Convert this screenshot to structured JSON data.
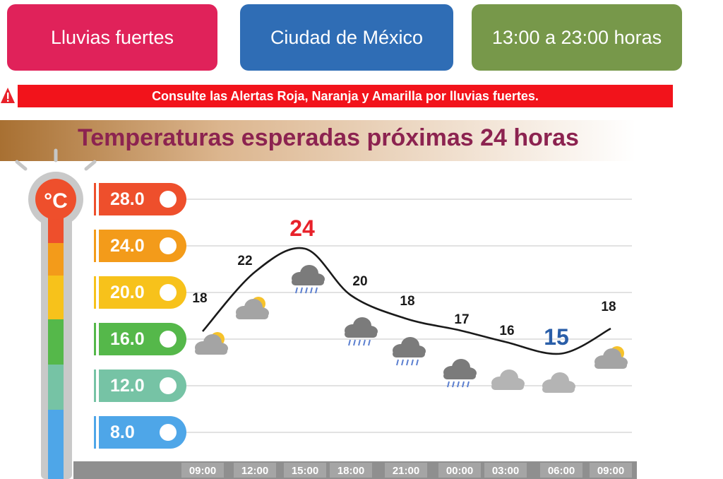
{
  "header": {
    "alert_label": "Lluvias fuertes",
    "city_label": "Ciudad de México",
    "time_label": "13:00 a 23:00 horas",
    "alert_color": "#e0225a",
    "city_color": "#2f6db5",
    "time_color": "#77984a"
  },
  "banner": {
    "text": "Consulte las Alertas Roja, Naranja y Amarilla por lluvias fuertes.",
    "color": "#f2131b"
  },
  "title": {
    "text": "Temperaturas esperadas próximas 24 horas",
    "color": "#8c2350"
  },
  "thermometer": {
    "unit": "°C"
  },
  "chart_data": {
    "type": "line",
    "title": "Temperaturas esperadas próximas 24 horas",
    "x": [
      "09:00",
      "12:00",
      "15:00",
      "18:00",
      "21:00",
      "00:00",
      "03:00",
      "06:00",
      "09:00"
    ],
    "values": [
      18,
      22,
      24,
      20,
      18,
      17,
      16,
      15,
      18
    ],
    "y_ticks": [
      "28.0",
      "24.0",
      "20.0",
      "16.0",
      "12.0",
      "8.0"
    ],
    "ylim": [
      8,
      28
    ],
    "grid": true,
    "tick_colors": [
      "#ee4f2c",
      "#f39b1a",
      "#f7c21b",
      "#55b84a",
      "#76c3a5",
      "#4ea6e8"
    ],
    "max_color": "#e8212a",
    "min_color": "#2a5ea8",
    "weather_icons": [
      "partly-cloudy-icon",
      "partly-cloudy-icon",
      "rain-cloud-icon",
      "rain-cloud-icon",
      "rain-cloud-icon",
      "rain-cloud-icon",
      "cloudy-icon",
      "cloudy-icon",
      "partly-cloudy-icon"
    ]
  }
}
